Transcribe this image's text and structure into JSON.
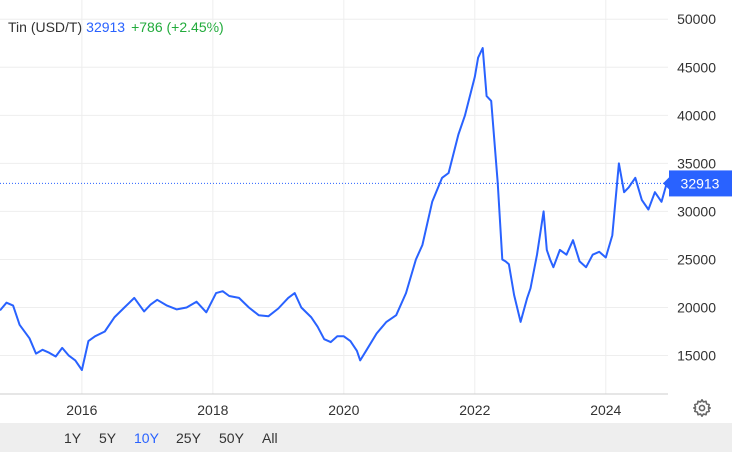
{
  "header": {
    "symbol": "Tin (USD/T)",
    "price": "32913",
    "change": "+786 (+2.45%)"
  },
  "price_tag": "32913",
  "range_buttons": [
    "1Y",
    "5Y",
    "10Y",
    "25Y",
    "50Y",
    "All"
  ],
  "active_range": "10Y",
  "colors": {
    "line": "#2962ff",
    "positive": "#22ab3c",
    "grid": "#eeeeee",
    "text": "#333333",
    "range_bar": "#eeeeee"
  },
  "icons": {
    "settings": "gear-icon"
  },
  "chart_data": {
    "type": "line",
    "title": "",
    "xlabel": "",
    "ylabel": "",
    "x_ticks": [
      "2016",
      "2018",
      "2020",
      "2022",
      "2024"
    ],
    "y_ticks": [
      15000,
      20000,
      25000,
      30000,
      35000,
      40000,
      45000,
      50000
    ],
    "ylim": [
      11000,
      52000
    ],
    "xlim": [
      2014.75,
      2024.95
    ],
    "grid": true,
    "last_value": 32913,
    "series": [
      {
        "x": [
          2014.75,
          2014.85,
          2014.95,
          2015.05,
          2015.2,
          2015.3,
          2015.4,
          2015.5,
          2015.6,
          2015.7,
          2015.8,
          2015.9,
          2016.0,
          2016.1,
          2016.2,
          2016.35,
          2016.5,
          2016.65,
          2016.8,
          2016.95,
          2017.05,
          2017.15,
          2017.3,
          2017.45,
          2017.6,
          2017.75,
          2017.9,
          2018.05,
          2018.15,
          2018.25,
          2018.4,
          2018.55,
          2018.7,
          2018.85,
          2019.0,
          2019.15,
          2019.25,
          2019.35,
          2019.5,
          2019.6,
          2019.7,
          2019.8,
          2019.9,
          2020.0,
          2020.1,
          2020.2,
          2020.25,
          2020.35,
          2020.5,
          2020.65,
          2020.8,
          2020.95,
          2021.1,
          2021.2,
          2021.35,
          2021.5,
          2021.6,
          2021.75,
          2021.85,
          2022.0,
          2022.05,
          2022.12,
          2022.18,
          2022.25,
          2022.35,
          2022.42,
          2022.47,
          2022.52,
          2022.6,
          2022.7,
          2022.8,
          2022.85,
          2022.95,
          2023.05,
          2023.1,
          2023.15,
          2023.2,
          2023.3,
          2023.4,
          2023.5,
          2023.6,
          2023.7,
          2023.8,
          2023.9,
          2024.0,
          2024.1,
          2024.2,
          2024.28,
          2024.35,
          2024.45,
          2024.55,
          2024.65,
          2024.75,
          2024.85,
          2024.93
        ],
        "y": [
          19700,
          20500,
          20200,
          18200,
          16800,
          15200,
          15600,
          15300,
          14900,
          15800,
          15000,
          14500,
          13500,
          16500,
          17000,
          17500,
          19000,
          20000,
          21000,
          19600,
          20300,
          20800,
          20200,
          19800,
          20000,
          20600,
          19500,
          21500,
          21700,
          21200,
          21000,
          20000,
          19200,
          19100,
          19900,
          21000,
          21500,
          20000,
          19000,
          18000,
          16700,
          16400,
          17000,
          17000,
          16500,
          15500,
          14500,
          15600,
          17300,
          18500,
          19200,
          21500,
          25000,
          26500,
          31000,
          33500,
          34000,
          38000,
          40000,
          44000,
          46000,
          47000,
          42000,
          41500,
          33000,
          25000,
          24800,
          24500,
          21300,
          18500,
          21000,
          22000,
          25500,
          30000,
          26000,
          25000,
          24200,
          26000,
          25500,
          27000,
          24800,
          24200,
          25500,
          25800,
          25200,
          27500,
          35000,
          32000,
          32500,
          33500,
          31200,
          30200,
          32000,
          31000,
          32913
        ]
      }
    ]
  }
}
